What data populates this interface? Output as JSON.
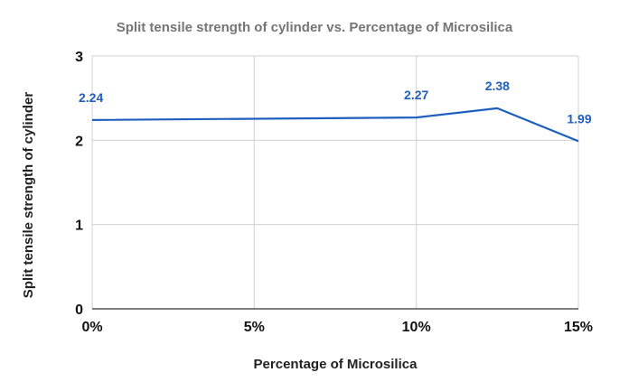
{
  "chart_data": {
    "type": "line",
    "title": "Split tensile strength of cylinder vs. Percentage of Microsilica",
    "xlabel": "Percentage of Microsilica",
    "ylabel": "Split tensile strength of cylinder",
    "x": [
      0,
      10,
      12.5,
      15
    ],
    "xlim": [
      0,
      15
    ],
    "xticks": [
      0,
      5,
      10,
      15
    ],
    "xtick_labels": [
      "0%",
      "5%",
      "10%",
      "15%"
    ],
    "ylim": [
      0,
      3
    ],
    "yticks": [
      0,
      1,
      2,
      3
    ],
    "ytick_labels": [
      "0",
      "1",
      "2",
      "3"
    ],
    "grid": true,
    "legend": "none",
    "series": [
      {
        "values": [
          2.24,
          2.27,
          2.38,
          1.99
        ],
        "data_labels": [
          "2.24",
          "2.27",
          "2.38",
          "1.99"
        ],
        "color": "#1f5fbf"
      }
    ]
  }
}
